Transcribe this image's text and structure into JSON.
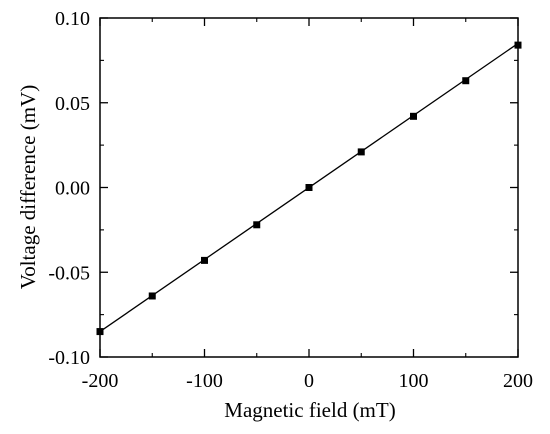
{
  "chart_data": {
    "type": "scatter",
    "title": "",
    "xlabel": "Magnetic field (mT)",
    "ylabel": "Voltage difference (mV)",
    "xlim": [
      -200,
      200
    ],
    "ylim": [
      -0.1,
      0.1
    ],
    "x_ticks": [
      -200,
      -100,
      0,
      100,
      200
    ],
    "x_tick_labels": [
      "-200",
      "-100",
      "0",
      "100",
      "200"
    ],
    "y_ticks": [
      -0.1,
      -0.05,
      0.0,
      0.05,
      0.1
    ],
    "y_tick_labels": [
      "-0.10",
      "-0.05",
      "0.00",
      "0.05",
      "0.10"
    ],
    "grid": false,
    "legend": "none",
    "series": [
      {
        "x": [
          -200,
          -150,
          -100,
          -50,
          0,
          50,
          100,
          150,
          200
        ],
        "y": [
          -0.085,
          -0.064,
          -0.043,
          -0.022,
          0.0,
          0.021,
          0.042,
          0.063,
          0.084
        ],
        "marker": "square",
        "color": "#000000"
      }
    ],
    "fit_line": {
      "x": [
        -200,
        200
      ],
      "y": [
        -0.085,
        0.085
      ],
      "color": "#000000"
    }
  }
}
